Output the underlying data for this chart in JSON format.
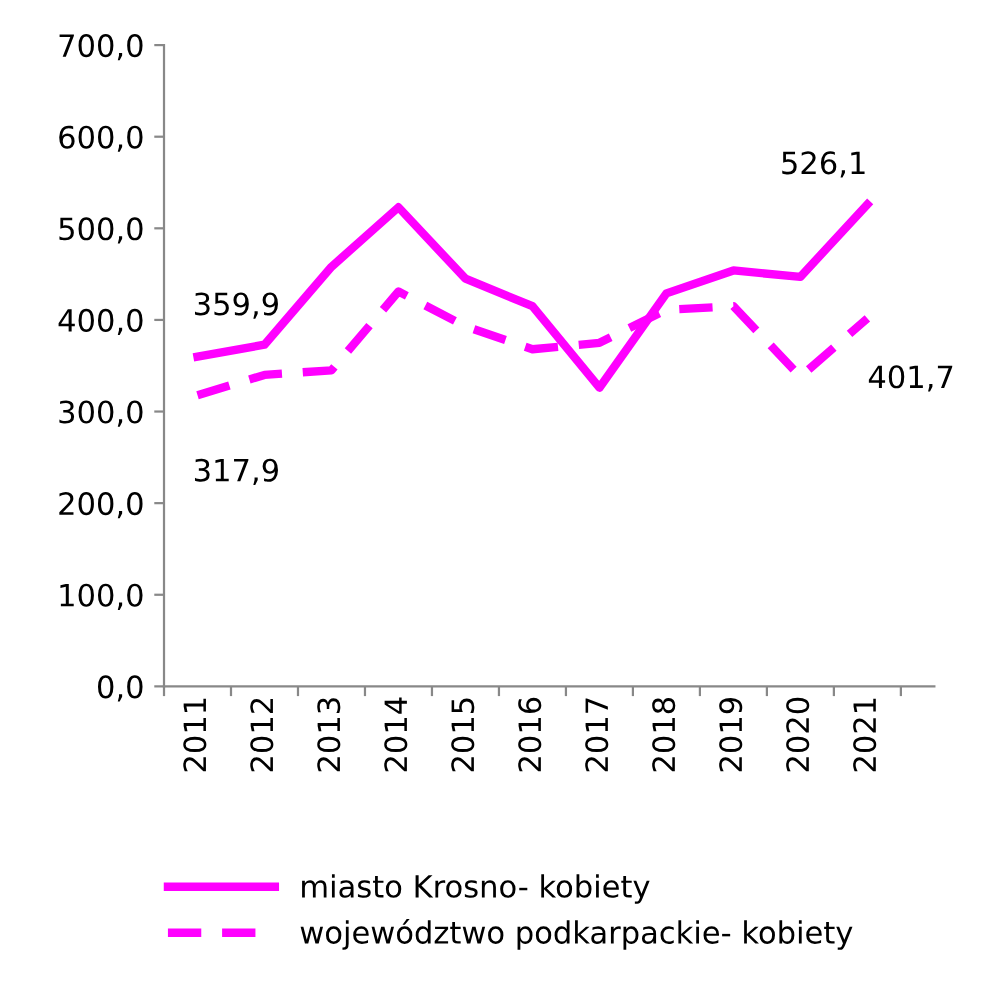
{
  "chart_data": {
    "type": "line",
    "categories": [
      "2011",
      "2012",
      "2013",
      "2014",
      "2015",
      "2016",
      "2017",
      "2018",
      "2019",
      "2020",
      "2021"
    ],
    "series": [
      {
        "name": "miasto Krosno- kobiety",
        "color": "#ff00ff",
        "line_style": "solid",
        "values": [
          359.9,
          373,
          458,
          523,
          445,
          415,
          326,
          429,
          454,
          447,
          526.1
        ],
        "value_labels": [
          "359,9",
          null,
          null,
          null,
          null,
          null,
          null,
          null,
          null,
          null,
          "526,1"
        ]
      },
      {
        "name": "województwo podkarpackie- kobiety",
        "color": "#ff00ff",
        "line_style": "dashed",
        "values": [
          317.9,
          340,
          345,
          431,
          393,
          368,
          375,
          411,
          415,
          338,
          401.7
        ],
        "value_labels": [
          "317,9",
          null,
          null,
          null,
          null,
          null,
          null,
          null,
          null,
          null,
          "401,7"
        ]
      }
    ],
    "ylim": [
      0,
      700
    ],
    "yticks": [
      {
        "value": 0,
        "label": "0,0"
      },
      {
        "value": 100,
        "label": "100,0"
      },
      {
        "value": 200,
        "label": "200,0"
      },
      {
        "value": 300,
        "label": "300,0"
      },
      {
        "value": 400,
        "label": "400,0"
      },
      {
        "value": 500,
        "label": "500,0"
      },
      {
        "value": 600,
        "label": "600,0"
      },
      {
        "value": 700,
        "label": "700,0"
      }
    ],
    "grid": false,
    "legend": "bottom",
    "marker": "none"
  }
}
